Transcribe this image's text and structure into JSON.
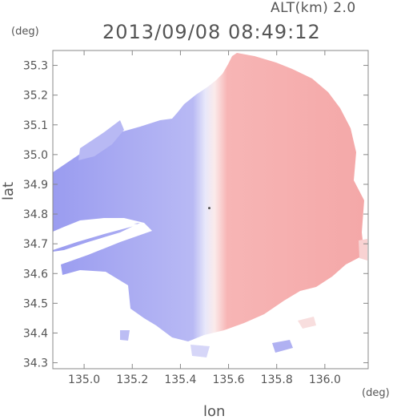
{
  "header": {
    "altitude": "ALT(km) 2.0",
    "timestamp": "2013/09/08 08:49:12",
    "y_unit": "(deg)",
    "x_unit": "(deg)"
  },
  "chart_data": {
    "type": "heatmap",
    "title": "2013/09/08 08:49:12",
    "xlabel": "lon",
    "ylabel": "lat",
    "xlim": [
      134.87,
      136.18
    ],
    "ylim": [
      34.28,
      35.35
    ],
    "xticks": [
      135.0,
      135.2,
      135.4,
      135.6,
      135.8,
      136.0
    ],
    "yticks": [
      34.3,
      34.4,
      34.5,
      34.6,
      34.7,
      34.8,
      34.9,
      35.0,
      35.1,
      35.2,
      35.3
    ],
    "radar_center": [
      135.52,
      34.82
    ],
    "colors": {
      "approaching": "#a9aaf2",
      "receding": "#f6aaaa",
      "neutral": "#f2f2fa",
      "frame": "#888888"
    },
    "grid": false
  }
}
